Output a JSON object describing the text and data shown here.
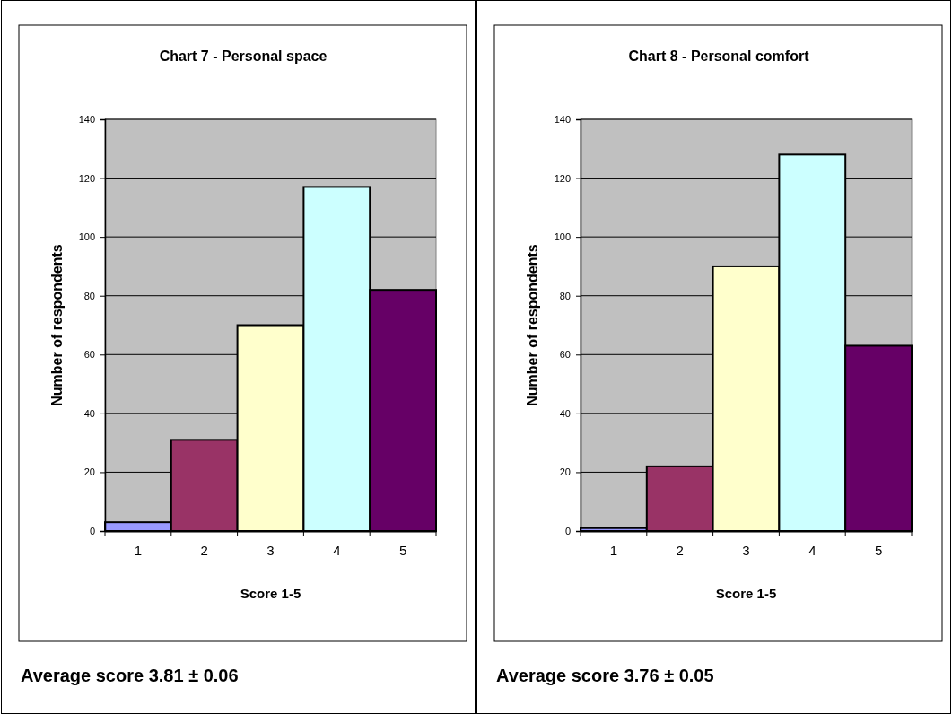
{
  "chart_data": [
    {
      "type": "bar",
      "title": "Chart 7 - Personal space",
      "xlabel": "Score 1-5",
      "ylabel": "Number of respondents",
      "categories": [
        "1",
        "2",
        "3",
        "4",
        "5"
      ],
      "values": [
        3,
        31,
        70,
        117,
        82
      ],
      "colors": [
        "#9999ff",
        "#993366",
        "#ffffcc",
        "#ccffff",
        "#660066"
      ],
      "ylim": [
        0,
        140
      ],
      "yticks": [
        0,
        20,
        40,
        60,
        80,
        100,
        120,
        140
      ],
      "grid": "y",
      "annotations": [
        "Average score 3.81 ± 0.06"
      ]
    },
    {
      "type": "bar",
      "title": "Chart 8 - Personal comfort",
      "xlabel": "Score 1-5",
      "ylabel": "Number of respondents",
      "categories": [
        "1",
        "2",
        "3",
        "4",
        "5"
      ],
      "values": [
        1,
        22,
        90,
        128,
        63
      ],
      "colors": [
        "#9999ff",
        "#993366",
        "#ffffcc",
        "#ccffff",
        "#660066"
      ],
      "ylim": [
        0,
        140
      ],
      "yticks": [
        0,
        20,
        40,
        60,
        80,
        100,
        120,
        140
      ],
      "grid": "y",
      "annotations": [
        "Average score 3.76 ± 0.05"
      ]
    }
  ]
}
